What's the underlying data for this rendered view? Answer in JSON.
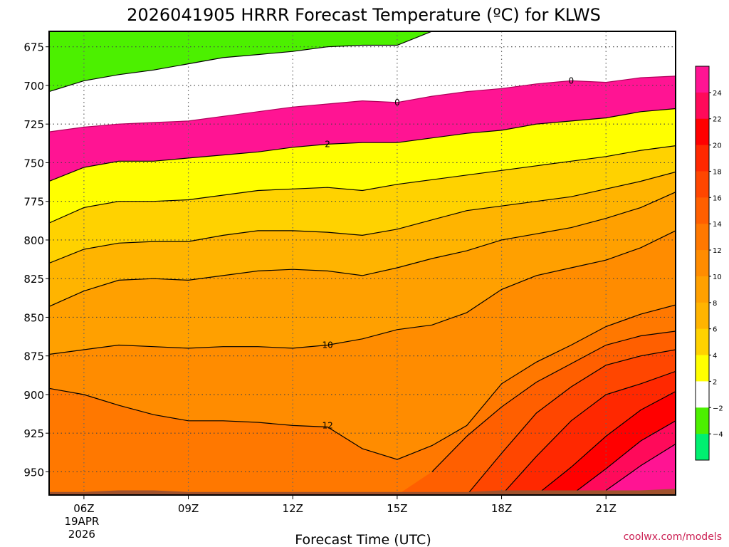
{
  "chart_data": {
    "type": "area",
    "title": "2026041905 HRRR Forecast Temperature (ºC) for KLWS",
    "xlabel": "Forecast Time (UTC)",
    "ylabel": "",
    "credit": "coolwx.com/models",
    "x_range_hours": [
      5,
      23
    ],
    "y_range_hpa": [
      665,
      965
    ],
    "x_ticks": [
      {
        "hour": 6,
        "label": "06Z",
        "date": "19APR",
        "year": "2026"
      },
      {
        "hour": 9,
        "label": "09Z"
      },
      {
        "hour": 12,
        "label": "12Z"
      },
      {
        "hour": 15,
        "label": "15Z"
      },
      {
        "hour": 18,
        "label": "18Z"
      },
      {
        "hour": 21,
        "label": "21Z"
      }
    ],
    "y_ticks": [
      675,
      700,
      725,
      750,
      775,
      800,
      825,
      850,
      875,
      900,
      925,
      950
    ],
    "hours": [
      5,
      6,
      7,
      8,
      9,
      10,
      11,
      12,
      13,
      14,
      15,
      16,
      17,
      18,
      19,
      20,
      21,
      22,
      23
    ],
    "isotherms": [
      {
        "temp": -2,
        "p": [
          704,
          697,
          693,
          690,
          686,
          682,
          680,
          678,
          675,
          674,
          674,
          665,
          665,
          665,
          665,
          665,
          665,
          665,
          665
        ]
      },
      {
        "temp": 0,
        "p": [
          730,
          727,
          725,
          724,
          723,
          720,
          717,
          714,
          712,
          710,
          711,
          707,
          704,
          702,
          699,
          697,
          698,
          695,
          694
        ]
      },
      {
        "temp": 2,
        "p": [
          762,
          753,
          749,
          749,
          747,
          745,
          743,
          740,
          738,
          737,
          737,
          734,
          731,
          729,
          725,
          723,
          721,
          717,
          715
        ]
      },
      {
        "temp": 4,
        "p": [
          789,
          779,
          775,
          775,
          774,
          771,
          768,
          767,
          766,
          768,
          764,
          761,
          758,
          755,
          752,
          749,
          746,
          742,
          739
        ]
      },
      {
        "temp": 6,
        "p": [
          815,
          806,
          802,
          801,
          801,
          797,
          794,
          794,
          795,
          797,
          793,
          787,
          781,
          778,
          775,
          772,
          767,
          762,
          756
        ]
      },
      {
        "temp": 8,
        "p": [
          843,
          833,
          826,
          825,
          826,
          823,
          820,
          819,
          820,
          823,
          818,
          812,
          807,
          800,
          796,
          792,
          786,
          779,
          769
        ]
      },
      {
        "temp": 10,
        "p": [
          874,
          871,
          868,
          869,
          870,
          869,
          869,
          870,
          868,
          864,
          858,
          855,
          847,
          832,
          823,
          818,
          813,
          805,
          794
        ]
      },
      {
        "temp": 12,
        "p": [
          896,
          900,
          907,
          913,
          917,
          917,
          918,
          920,
          921,
          935,
          942,
          933,
          920,
          893,
          879,
          868,
          856,
          848,
          842
        ]
      },
      {
        "temp": 14,
        "p": [
          null,
          null,
          null,
          null,
          null,
          null,
          null,
          null,
          null,
          null,
          null,
          950,
          927,
          908,
          892,
          880,
          868,
          862,
          859
        ]
      },
      {
        "temp": 16,
        "p": [
          null,
          null,
          null,
          null,
          null,
          null,
          null,
          null,
          null,
          null,
          null,
          null,
          965,
          938,
          912,
          895,
          881,
          875,
          871
        ]
      },
      {
        "temp": 18,
        "p": [
          null,
          null,
          null,
          null,
          null,
          null,
          null,
          null,
          null,
          null,
          null,
          null,
          null,
          965,
          940,
          917,
          900,
          893,
          885
        ]
      },
      {
        "temp": 20,
        "p": [
          null,
          null,
          null,
          null,
          null,
          null,
          null,
          null,
          null,
          null,
          null,
          null,
          null,
          null,
          965,
          947,
          927,
          910,
          898
        ]
      },
      {
        "temp": 22,
        "p": [
          null,
          null,
          null,
          null,
          null,
          null,
          null,
          null,
          null,
          null,
          null,
          null,
          null,
          null,
          null,
          965,
          948,
          930,
          917
        ]
      },
      {
        "temp": 24,
        "p": [
          null,
          null,
          null,
          null,
          null,
          null,
          null,
          null,
          null,
          null,
          null,
          null,
          null,
          null,
          null,
          null,
          962,
          946,
          932
        ]
      }
    ],
    "contour_labels": [
      {
        "text": "0",
        "hour": 15.0,
        "p": 711
      },
      {
        "text": "0",
        "hour": 20.0,
        "p": 697
      },
      {
        "text": "2",
        "hour": 13.0,
        "p": 738
      },
      {
        "text": "10",
        "hour": 13.0,
        "p": 868
      },
      {
        "text": "12",
        "hour": 13.0,
        "p": 920
      }
    ],
    "surface_pressure_hpa": [
      963,
      963,
      962,
      962,
      963,
      963,
      963,
      963,
      963,
      963,
      963,
      963,
      963,
      962,
      962,
      962,
      962,
      962,
      961
    ],
    "colorbar": {
      "levels": [
        26,
        24,
        22,
        20,
        18,
        16,
        14,
        12,
        10,
        8,
        6,
        4,
        2,
        -2,
        -4,
        -6
      ],
      "tick_labels": [
        "24",
        "22",
        "20",
        "18",
        "16",
        "14",
        "12",
        "10",
        "8",
        "6",
        "4",
        "2",
        "−2",
        "−4"
      ],
      "colors": [
        "#ff1493",
        "#ff0a5a",
        "#ff0000",
        "#ff2800",
        "#ff4600",
        "#ff5f00",
        "#ff7800",
        "#ff8c00",
        "#ffa000",
        "#ffb400",
        "#ffd200",
        "#ffff00",
        "#ffffff",
        "#4cf000",
        "#00f070"
      ]
    },
    "ground_color": "#a0522d",
    "label_color": "#cc2255",
    "zero_line_color": "#b0005a"
  }
}
